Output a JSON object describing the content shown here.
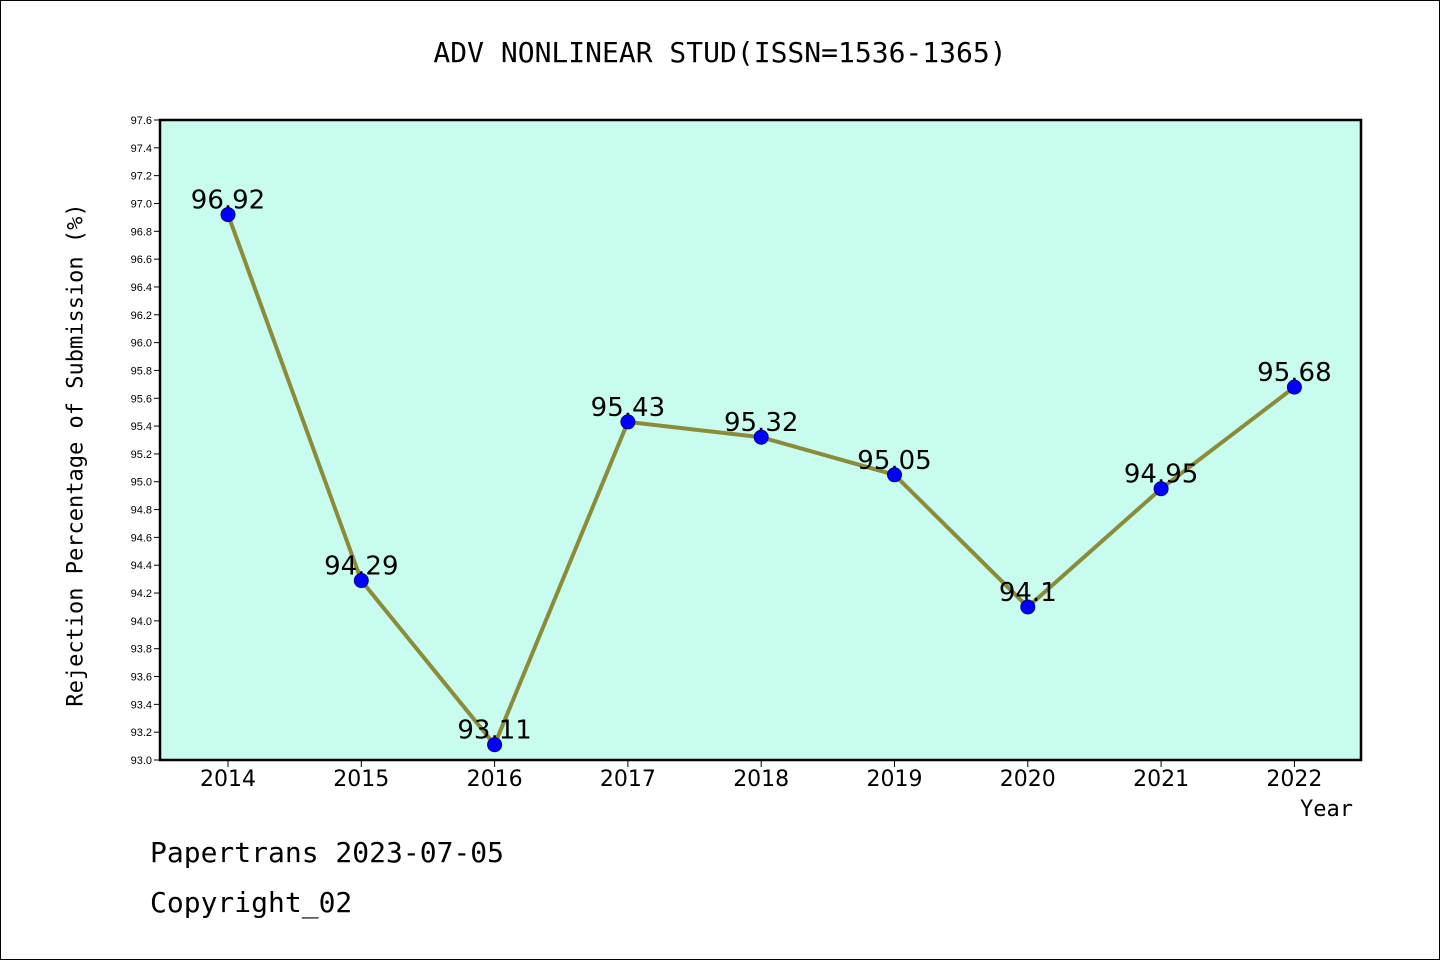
{
  "chart_data": {
    "type": "line",
    "title": "ADV NONLINEAR STUD(ISSN=1536-1365)",
    "xlabel": "Year",
    "ylabel": "Rejection Percentage of Submission (%)",
    "categories": [
      "2014",
      "2015",
      "2016",
      "2017",
      "2018",
      "2019",
      "2020",
      "2021",
      "2022"
    ],
    "values": [
      96.92,
      94.29,
      93.11,
      95.43,
      95.32,
      95.05,
      94.1,
      94.95,
      95.68
    ],
    "data_labels": [
      "96.92",
      "94.29",
      "93.11",
      "95.43",
      "95.32",
      "95.05",
      "94.1",
      "94.95",
      "95.68"
    ],
    "ylim": [
      93.0,
      97.6
    ],
    "ytick_step": 0.2,
    "grid": false,
    "colors": {
      "plot_background": "#c8fcee",
      "line": "#8b8b3a",
      "marker": "#0000ff"
    }
  },
  "footer": {
    "line1": "Papertrans 2023-07-05",
    "line2": "Copyright_02"
  }
}
